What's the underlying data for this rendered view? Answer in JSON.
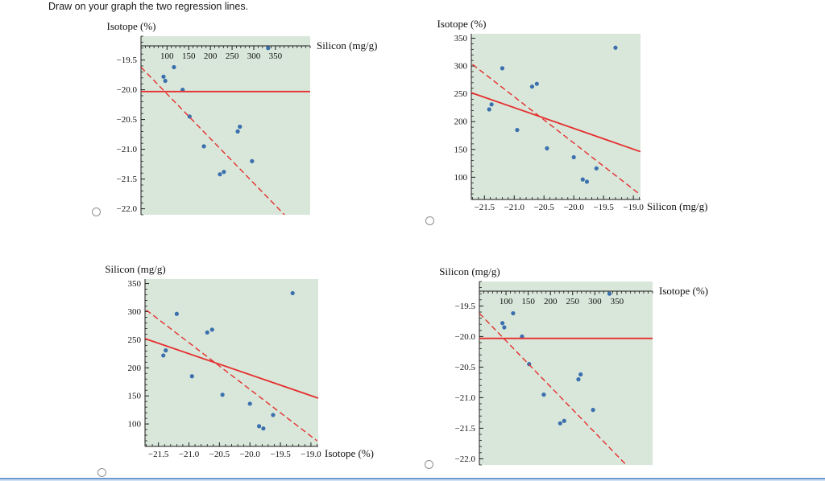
{
  "page": {
    "question": "Draw on your graph the two regression lines."
  },
  "colors": {
    "plot_bg": "#d8e7da",
    "point": "#3b6fae",
    "regression": "#e62e2e",
    "axis": "#1a1a1a"
  },
  "options": [
    {
      "id": "A"
    },
    {
      "id": "B"
    },
    {
      "id": "C"
    },
    {
      "id": "D"
    }
  ],
  "chart_data": [
    {
      "type": "scatter",
      "option": "A",
      "title": "Isotope (%)",
      "x_axis": {
        "label": "Silicon (mg/g)",
        "side": "top",
        "range": [
          40,
          430
        ],
        "ticks": [
          100,
          150,
          200,
          250,
          300,
          350
        ],
        "tick_labels": [
          "100",
          "150",
          "200",
          "250",
          "300",
          "350"
        ]
      },
      "y_axis": {
        "side": "left",
        "range": [
          -22.1,
          -19.1
        ],
        "ticks": [
          -19.5,
          -20.0,
          -20.5,
          -21.0,
          -21.5,
          -22.0
        ],
        "tick_labels": [
          "−19.5",
          "−20.0",
          "−20.5",
          "−21.0",
          "−21.5",
          "−22.0"
        ]
      },
      "points": [
        [
          222,
          -21.42
        ],
        [
          231,
          -21.38
        ],
        [
          296,
          -21.2
        ],
        [
          185,
          -20.95
        ],
        [
          263,
          -20.7
        ],
        [
          268,
          -20.62
        ],
        [
          152,
          -20.45
        ],
        [
          136,
          -20.0
        ],
        [
          96,
          -19.85
        ],
        [
          92,
          -19.78
        ],
        [
          116,
          -19.62
        ],
        [
          333,
          -19.3
        ]
      ],
      "lines": [
        {
          "style": "solid",
          "from": [
            40,
            -20.03
          ],
          "to": [
            430,
            -20.03
          ]
        },
        {
          "style": "dashed",
          "from": [
            40,
            -19.62
          ],
          "to": [
            380,
            -22.17
          ]
        }
      ]
    },
    {
      "type": "scatter",
      "option": "B",
      "title": "Isotope (%)",
      "x_axis": {
        "label": "Silicon (mg/g)",
        "side": "bottom",
        "range": [
          -21.72,
          -18.88
        ],
        "ticks": [
          -21.5,
          -21.0,
          -20.5,
          -20.0,
          -19.5,
          -19.0
        ],
        "tick_labels": [
          "−21.5",
          "−21.0",
          "−20.5",
          "−20.0",
          "−19.5",
          "−19.0"
        ]
      },
      "y_axis": {
        "side": "left",
        "range": [
          60,
          358
        ],
        "ticks": [
          100,
          150,
          200,
          250,
          300,
          350
        ],
        "tick_labels": [
          "100",
          "150",
          "200",
          "250",
          "300",
          "350"
        ]
      },
      "points": [
        [
          -21.42,
          222
        ],
        [
          -21.38,
          231
        ],
        [
          -21.2,
          296
        ],
        [
          -20.95,
          185
        ],
        [
          -20.7,
          263
        ],
        [
          -20.62,
          268
        ],
        [
          -20.45,
          152
        ],
        [
          -20.0,
          136
        ],
        [
          -19.85,
          96
        ],
        [
          -19.78,
          92
        ],
        [
          -19.62,
          116
        ],
        [
          -19.3,
          333
        ]
      ],
      "lines": [
        {
          "style": "solid",
          "from": [
            -21.72,
            252
          ],
          "to": [
            -18.88,
            146
          ]
        },
        {
          "style": "dashed",
          "from": [
            -21.7,
            303
          ],
          "to": [
            -18.9,
            70
          ]
        }
      ]
    },
    {
      "type": "scatter",
      "option": "C",
      "title": "Silicon (mg/g)",
      "x_axis": {
        "label": "Isotope (%)",
        "side": "bottom",
        "range": [
          -21.72,
          -18.88
        ],
        "ticks": [
          -21.5,
          -21.0,
          -20.5,
          -20.0,
          -19.5,
          -19.0
        ],
        "tick_labels": [
          "−21.5",
          "−21.0",
          "−20.5",
          "−20.0",
          "−19.5",
          "−19.0"
        ]
      },
      "y_axis": {
        "side": "left",
        "range": [
          60,
          358
        ],
        "ticks": [
          100,
          150,
          200,
          250,
          300,
          350
        ],
        "tick_labels": [
          "100",
          "150",
          "200",
          "250",
          "300",
          "350"
        ]
      },
      "points": [
        [
          -21.42,
          222
        ],
        [
          -21.38,
          231
        ],
        [
          -21.2,
          296
        ],
        [
          -20.95,
          185
        ],
        [
          -20.7,
          263
        ],
        [
          -20.62,
          268
        ],
        [
          -20.45,
          152
        ],
        [
          -20.0,
          136
        ],
        [
          -19.85,
          96
        ],
        [
          -19.78,
          92
        ],
        [
          -19.62,
          116
        ],
        [
          -19.3,
          333
        ]
      ],
      "lines": [
        {
          "style": "solid",
          "from": [
            -21.72,
            252
          ],
          "to": [
            -18.88,
            146
          ]
        },
        {
          "style": "dashed",
          "from": [
            -21.7,
            303
          ],
          "to": [
            -18.9,
            70
          ]
        }
      ]
    },
    {
      "type": "scatter",
      "option": "D",
      "title": "Silicon (mg/g)",
      "x_axis": {
        "label": "Isotope (%)",
        "side": "top",
        "range": [
          40,
          430
        ],
        "ticks": [
          100,
          150,
          200,
          250,
          300,
          350
        ],
        "tick_labels": [
          "100",
          "150",
          "200",
          "250",
          "300",
          "350"
        ]
      },
      "y_axis": {
        "side": "left",
        "range": [
          -22.1,
          -19.1
        ],
        "ticks": [
          -19.5,
          -20.0,
          -20.5,
          -21.0,
          -21.5,
          -22.0
        ],
        "tick_labels": [
          "−19.5",
          "−20.0",
          "−20.5",
          "−21.0",
          "−21.5",
          "−22.0"
        ]
      },
      "points": [
        [
          222,
          -21.42
        ],
        [
          231,
          -21.38
        ],
        [
          296,
          -21.2
        ],
        [
          185,
          -20.95
        ],
        [
          263,
          -20.7
        ],
        [
          268,
          -20.62
        ],
        [
          152,
          -20.45
        ],
        [
          136,
          -20.0
        ],
        [
          96,
          -19.85
        ],
        [
          92,
          -19.78
        ],
        [
          116,
          -19.62
        ],
        [
          333,
          -19.3
        ]
      ],
      "lines": [
        {
          "style": "solid",
          "from": [
            40,
            -20.03
          ],
          "to": [
            430,
            -20.03
          ]
        },
        {
          "style": "dashed",
          "from": [
            40,
            -19.62
          ],
          "to": [
            380,
            -22.17
          ]
        }
      ]
    }
  ]
}
